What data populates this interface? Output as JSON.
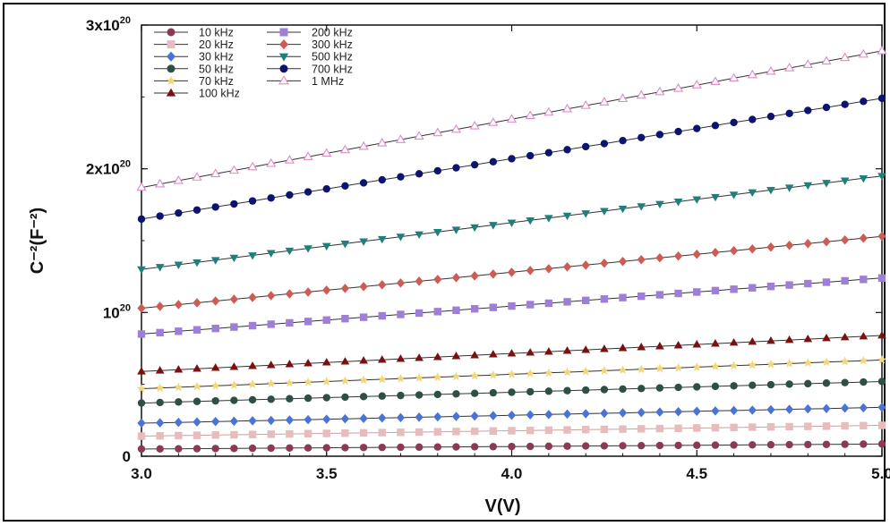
{
  "chart_data": {
    "type": "line",
    "xlabel": "V(V)",
    "ylabel": "C⁻²(F⁻²)",
    "xlim": [
      3.0,
      5.0
    ],
    "ylim": [
      0,
      3e+20
    ],
    "xticks": [
      3.0,
      3.5,
      4.0,
      4.5,
      5.0
    ],
    "xtick_labels": [
      "3.0",
      "3.5",
      "4.0",
      "4.5",
      "5.0"
    ],
    "yticks": [
      0,
      1e+20,
      2e+20,
      3e+20
    ],
    "ytick_labels": [
      {
        "base": "0",
        "exp": ""
      },
      {
        "base": "10",
        "exp": "20"
      },
      {
        "base": "2x10",
        "exp": "20"
      },
      {
        "base": "3x10",
        "exp": "20"
      }
    ],
    "legend_position": "top-left",
    "series": [
      {
        "name": "10 kHz",
        "color": "#8b3a55",
        "marker": "circle",
        "y_start": 5e+18,
        "y_end": 8.5e+18
      },
      {
        "name": "20 kHz",
        "color": "#e6bcbc",
        "marker": "square",
        "y_start": 1.4e+19,
        "y_end": 2.15e+19
      },
      {
        "name": "30 kHz",
        "color": "#4a73d6",
        "marker": "diamond",
        "y_start": 2.3e+19,
        "y_end": 3.4e+19
      },
      {
        "name": "50 kHz",
        "color": "#2f4f46",
        "marker": "circle",
        "y_start": 3.7e+19,
        "y_end": 5.2e+19
      },
      {
        "name": "70 kHz",
        "color": "#f0d77a",
        "marker": "star",
        "y_start": 4.7e+19,
        "y_end": 6.7e+19
      },
      {
        "name": "100 kHz",
        "color": "#7a1010",
        "marker": "triangle-up",
        "y_start": 5.9e+19,
        "y_end": 8.4e+19
      },
      {
        "name": "200 kHz",
        "color": "#9d7fd6",
        "marker": "square",
        "y_start": 8.5e+19,
        "y_end": 1.24e+20
      },
      {
        "name": "300 kHz",
        "color": "#cc5c54",
        "marker": "diamond",
        "y_start": 1.03e+20,
        "y_end": 1.53e+20
      },
      {
        "name": "500 kHz",
        "color": "#1f7f7a",
        "marker": "triangle-down",
        "y_start": 1.3e+20,
        "y_end": 1.95e+20
      },
      {
        "name": "700 kHz",
        "color": "#0c1470",
        "marker": "circle",
        "y_start": 1.65e+20,
        "y_end": 2.49e+20
      },
      {
        "name": "1 MHz",
        "color": "#e08ac4",
        "marker": "triangle-open",
        "y_start": 1.87e+20,
        "y_end": 2.82e+20
      }
    ]
  }
}
